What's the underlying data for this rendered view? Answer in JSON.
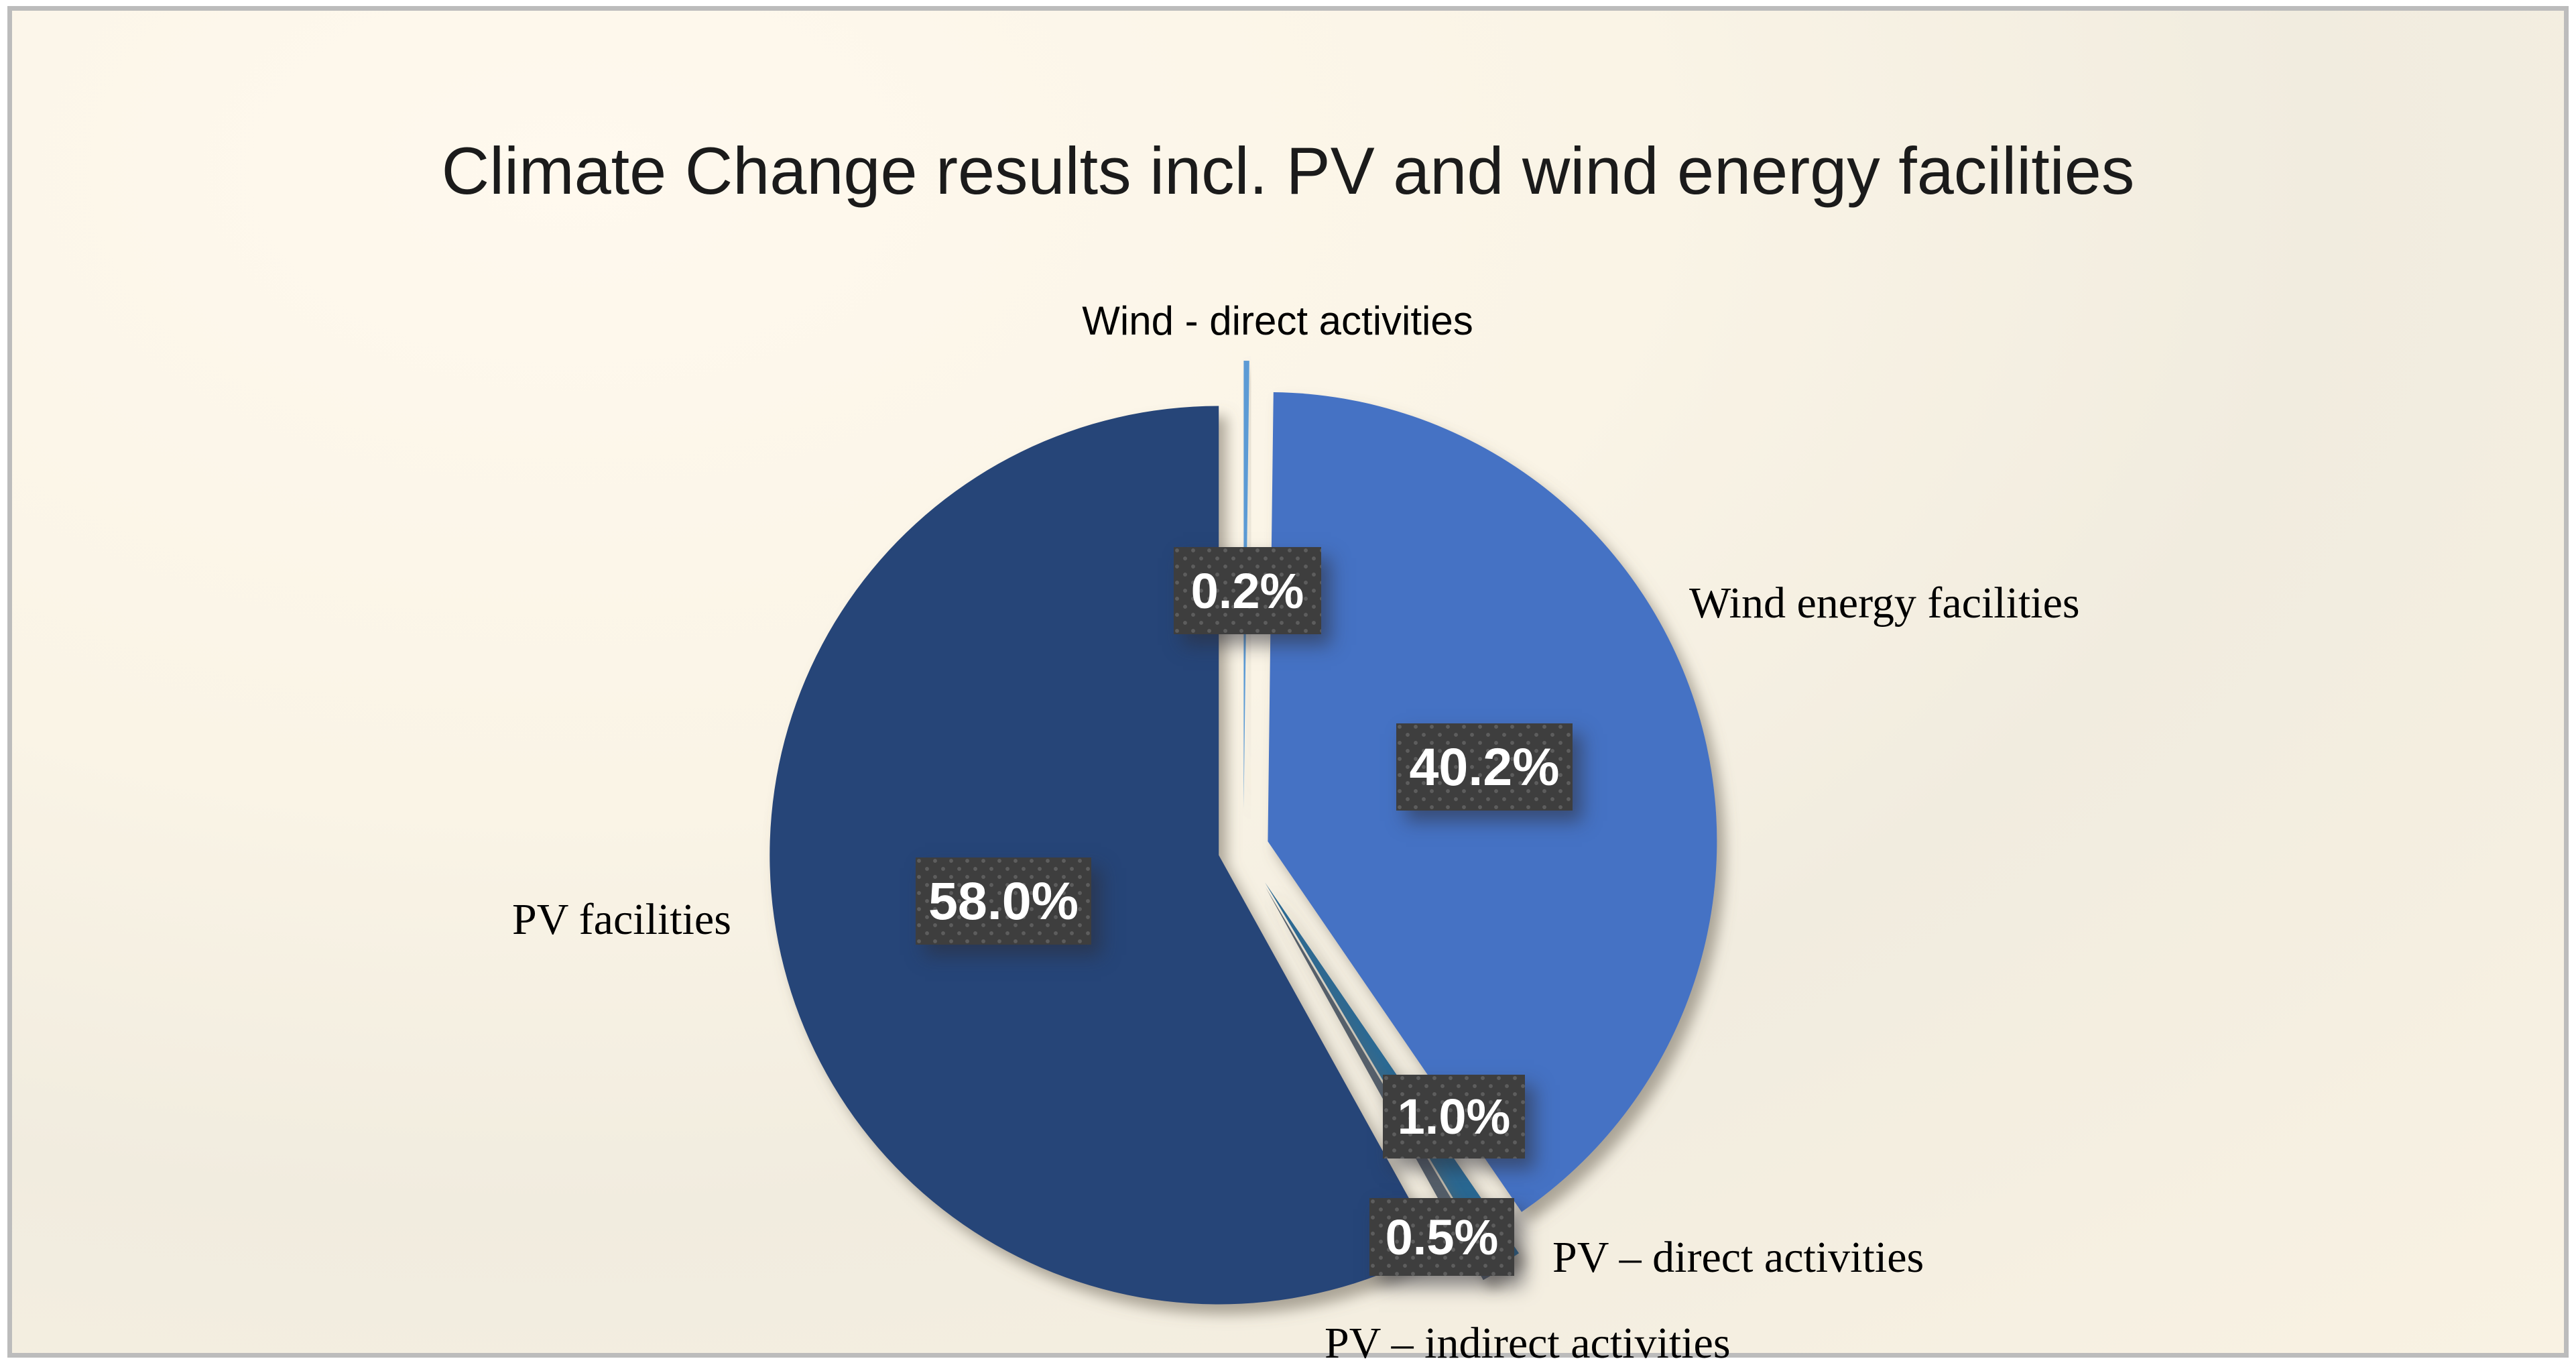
{
  "chart_data": {
    "type": "pie",
    "title": "Climate Change results incl. PV and wind energy facilities",
    "direction": "clockwise",
    "start_angle_deg": 0,
    "legend_position": "none",
    "total_percent": 99.9,
    "slices": [
      {
        "label": "Wind - direct activities",
        "value": 0.2,
        "display": "0.2%",
        "color": "#5b9bd5"
      },
      {
        "label": "Wind energy facilities",
        "value": 40.2,
        "display": "40.2%",
        "color": "#4472c4"
      },
      {
        "label": "PV – direct activities",
        "value": 1.0,
        "display": "1.0%",
        "color": "#2b6994"
      },
      {
        "label": "PV – indirect activities",
        "value": 0.5,
        "display": "0.5%",
        "color": "#555f6b"
      },
      {
        "label": "PV facilities",
        "value": 58.0,
        "display": "58.0%",
        "color": "#264478"
      }
    ],
    "label_style": "dark dotted-pattern boxes with white bold percent values; category names as plain text outside the pie"
  },
  "colors": {
    "page_background": "#fcf5e7",
    "outer_margin": "#ffffff",
    "frame_border": "#bcbcbc",
    "data_label_box": "#3e3e3e",
    "data_label_dots": "#5d5d5d",
    "data_label_text": "#ffffff",
    "title_text": "#1b1b1b",
    "category_text": "#000000"
  }
}
